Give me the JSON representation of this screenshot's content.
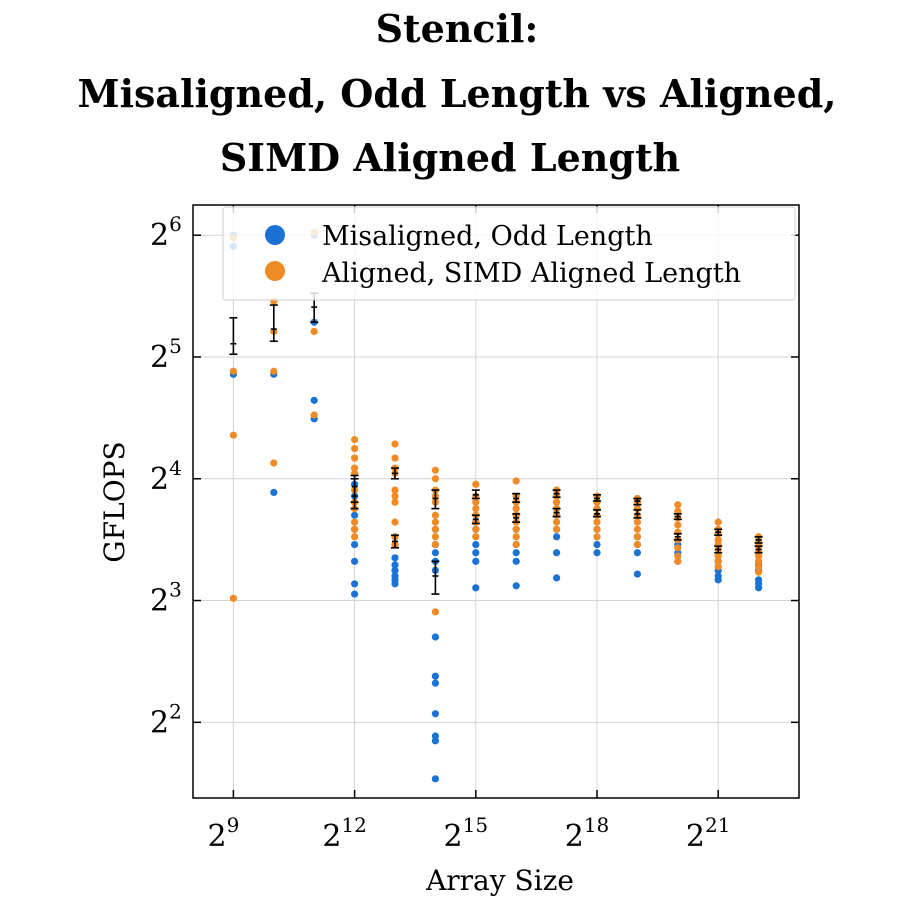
{
  "chart_data": {
    "type": "scatter",
    "title": [
      "Stencil:",
      "Misaligned, Odd Length vs Aligned,",
      "SIMD Aligned Length"
    ],
    "xlabel": "Array Size",
    "ylabel": "GFLOPS",
    "x_scale": "log2",
    "y_scale": "log2",
    "xlim": [
      256,
      8388608
    ],
    "ylim": [
      2.6,
      76
    ],
    "x_ticks": [
      {
        "base": "2",
        "exp": "9",
        "value": 512
      },
      {
        "base": "2",
        "exp": "12",
        "value": 4096
      },
      {
        "base": "2",
        "exp": "15",
        "value": 32768
      },
      {
        "base": "2",
        "exp": "18",
        "value": 262144
      },
      {
        "base": "2",
        "exp": "21",
        "value": 2097152
      }
    ],
    "y_ticks": [
      {
        "base": "2",
        "exp": "2",
        "value": 4
      },
      {
        "base": "2",
        "exp": "3",
        "value": 8
      },
      {
        "base": "2",
        "exp": "4",
        "value": 16
      },
      {
        "base": "2",
        "exp": "5",
        "value": 32
      },
      {
        "base": "2",
        "exp": "6",
        "value": 64
      }
    ],
    "grid": true,
    "legend_position": "top-right",
    "series": [
      {
        "name": "Misaligned, Odd Length",
        "color": "#1a73d4",
        "points": [
          [
            512,
            64
          ],
          [
            512,
            60
          ],
          [
            512,
            29
          ],
          [
            1024,
            29
          ],
          [
            1024,
            14.8
          ],
          [
            2048,
            64
          ],
          [
            2048,
            39
          ],
          [
            2048,
            25
          ],
          [
            2048,
            22.5
          ],
          [
            4096,
            15.5
          ],
          [
            4096,
            14.5
          ],
          [
            4096,
            13
          ],
          [
            4096,
            12
          ],
          [
            4096,
            11
          ],
          [
            4096,
            10
          ],
          [
            4096,
            8.8
          ],
          [
            4096,
            8.3
          ],
          [
            8192,
            11.5
          ],
          [
            8192,
            11
          ],
          [
            8192,
            10.2
          ],
          [
            8192,
            9.8
          ],
          [
            8192,
            9.5
          ],
          [
            8192,
            9.2
          ],
          [
            8192,
            9
          ],
          [
            8192,
            8.8
          ],
          [
            16384,
            12
          ],
          [
            16384,
            11
          ],
          [
            16384,
            10.5
          ],
          [
            16384,
            10
          ],
          [
            16384,
            9.5
          ],
          [
            16384,
            6.5
          ],
          [
            16384,
            5.2
          ],
          [
            16384,
            5
          ],
          [
            16384,
            4.2
          ],
          [
            16384,
            3.7
          ],
          [
            16384,
            3.6
          ],
          [
            16384,
            2.9
          ],
          [
            32768,
            12.5
          ],
          [
            32768,
            12
          ],
          [
            32768,
            11
          ],
          [
            32768,
            10.5
          ],
          [
            32768,
            10
          ],
          [
            32768,
            8.6
          ],
          [
            65536,
            12
          ],
          [
            65536,
            11
          ],
          [
            65536,
            10.5
          ],
          [
            65536,
            10
          ],
          [
            65536,
            8.7
          ],
          [
            131072,
            12
          ],
          [
            131072,
            11.5
          ],
          [
            131072,
            10.5
          ],
          [
            131072,
            9.1
          ],
          [
            262144,
            12
          ],
          [
            262144,
            11
          ],
          [
            262144,
            10.5
          ],
          [
            524288,
            11.5
          ],
          [
            524288,
            11
          ],
          [
            524288,
            10.5
          ],
          [
            524288,
            9.3
          ],
          [
            1048576,
            11
          ],
          [
            1048576,
            10.5
          ],
          [
            1048576,
            10
          ],
          [
            2097152,
            10
          ],
          [
            2097152,
            9.5
          ],
          [
            2097152,
            9.2
          ],
          [
            2097152,
            9
          ],
          [
            4194304,
            9.8
          ],
          [
            4194304,
            9.5
          ],
          [
            4194304,
            9
          ],
          [
            4194304,
            8.8
          ],
          [
            4194304,
            8.6
          ]
        ]
      },
      {
        "name": "Aligned, SIMD Aligned Length",
        "color": "#f08a24",
        "points": [
          [
            512,
            63
          ],
          [
            512,
            29.5
          ],
          [
            512,
            20.5
          ],
          [
            512,
            8.1
          ],
          [
            1024,
            44
          ],
          [
            1024,
            37
          ],
          [
            1024,
            29.5
          ],
          [
            1024,
            17.5
          ],
          [
            2048,
            65
          ],
          [
            2048,
            37
          ],
          [
            2048,
            23
          ],
          [
            4096,
            20
          ],
          [
            4096,
            19
          ],
          [
            4096,
            18
          ],
          [
            4096,
            17
          ],
          [
            4096,
            16.5
          ],
          [
            4096,
            15
          ],
          [
            4096,
            14
          ],
          [
            4096,
            13.5
          ],
          [
            4096,
            12.5
          ],
          [
            4096,
            12
          ],
          [
            4096,
            11.5
          ],
          [
            8192,
            19.5
          ],
          [
            8192,
            18
          ],
          [
            8192,
            17
          ],
          [
            8192,
            16.5
          ],
          [
            8192,
            15
          ],
          [
            8192,
            14.5
          ],
          [
            8192,
            14
          ],
          [
            8192,
            12.5
          ],
          [
            8192,
            11.5
          ],
          [
            8192,
            11
          ],
          [
            16384,
            16.8
          ],
          [
            16384,
            16
          ],
          [
            16384,
            15
          ],
          [
            16384,
            14.5
          ],
          [
            16384,
            14
          ],
          [
            16384,
            13
          ],
          [
            16384,
            12.5
          ],
          [
            16384,
            12
          ],
          [
            16384,
            11.5
          ],
          [
            16384,
            11
          ],
          [
            16384,
            7.5
          ],
          [
            32768,
            15.5
          ],
          [
            32768,
            14.5
          ],
          [
            32768,
            14
          ],
          [
            32768,
            13.5
          ],
          [
            32768,
            13
          ],
          [
            32768,
            12.5
          ],
          [
            32768,
            12
          ],
          [
            32768,
            11.5
          ],
          [
            65536,
            15.8
          ],
          [
            65536,
            14.5
          ],
          [
            65536,
            14
          ],
          [
            65536,
            13.5
          ],
          [
            65536,
            13
          ],
          [
            65536,
            12.5
          ],
          [
            65536,
            12
          ],
          [
            65536,
            11.5
          ],
          [
            65536,
            11
          ],
          [
            131072,
            15
          ],
          [
            131072,
            14.5
          ],
          [
            131072,
            14
          ],
          [
            131072,
            13.5
          ],
          [
            131072,
            13
          ],
          [
            131072,
            12.5
          ],
          [
            131072,
            12
          ],
          [
            262144,
            14.5
          ],
          [
            262144,
            14
          ],
          [
            262144,
            13.5
          ],
          [
            262144,
            13
          ],
          [
            262144,
            12.5
          ],
          [
            262144,
            12
          ],
          [
            262144,
            11.5
          ],
          [
            524288,
            14.3
          ],
          [
            524288,
            14
          ],
          [
            524288,
            13.5
          ],
          [
            524288,
            13
          ],
          [
            524288,
            12.5
          ],
          [
            524288,
            12
          ],
          [
            524288,
            11.5
          ],
          [
            524288,
            11
          ],
          [
            1048576,
            13.8
          ],
          [
            1048576,
            13.3
          ],
          [
            1048576,
            12.8
          ],
          [
            1048576,
            12.3
          ],
          [
            1048576,
            11.8
          ],
          [
            1048576,
            11.3
          ],
          [
            1048576,
            10.8
          ],
          [
            1048576,
            10.3
          ],
          [
            1048576,
            10
          ],
          [
            2097152,
            12.5
          ],
          [
            2097152,
            12
          ],
          [
            2097152,
            11.7
          ],
          [
            2097152,
            11.3
          ],
          [
            2097152,
            11
          ],
          [
            2097152,
            10.7
          ],
          [
            2097152,
            10.3
          ],
          [
            2097152,
            10
          ],
          [
            2097152,
            9.7
          ],
          [
            4194304,
            11.5
          ],
          [
            4194304,
            11.2
          ],
          [
            4194304,
            10.9
          ],
          [
            4194304,
            10.6
          ],
          [
            4194304,
            10.3
          ],
          [
            4194304,
            10
          ],
          [
            4194304,
            9.7
          ],
          [
            4194304,
            9.4
          ]
        ]
      }
    ],
    "error_bars": [
      {
        "x": 512,
        "low": 32.5,
        "high": 40,
        "mid": 34.5
      },
      {
        "x": 1024,
        "low": 35,
        "high": 43,
        "mid": 37.5
      },
      {
        "x": 2048,
        "low": 39,
        "high": 46,
        "mid": 42.5
      },
      {
        "x": 4096,
        "low": 14,
        "high": 16.3,
        "mid": 15.3
      },
      {
        "x": 4096,
        "low": 13.5,
        "high": 16,
        "mid": 14.5
      },
      {
        "x": 8192,
        "low": 16,
        "high": 17,
        "mid": 16.5
      },
      {
        "x": 8192,
        "low": 10.8,
        "high": 11.6,
        "mid": 11.2
      },
      {
        "x": 16384,
        "low": 13.5,
        "high": 15,
        "mid": 14.3
      },
      {
        "x": 16384,
        "low": 8.3,
        "high": 10,
        "mid": 9.2
      },
      {
        "x": 32768,
        "low": 14.3,
        "high": 15,
        "mid": 14.6
      },
      {
        "x": 32768,
        "low": 12.4,
        "high": 13,
        "mid": 12.7
      },
      {
        "x": 65536,
        "low": 14,
        "high": 14.7,
        "mid": 14.3
      },
      {
        "x": 65536,
        "low": 12.5,
        "high": 13.1,
        "mid": 12.8
      },
      {
        "x": 131072,
        "low": 14.4,
        "high": 15,
        "mid": 14.7
      },
      {
        "x": 131072,
        "low": 12.9,
        "high": 13.5,
        "mid": 13.2
      },
      {
        "x": 262144,
        "low": 14.1,
        "high": 14.6,
        "mid": 14.3
      },
      {
        "x": 262144,
        "low": 12.9,
        "high": 13.4,
        "mid": 13.1
      },
      {
        "x": 524288,
        "low": 13.8,
        "high": 14.3,
        "mid": 14.1
      },
      {
        "x": 524288,
        "low": 12.8,
        "high": 13.4,
        "mid": 13.1
      },
      {
        "x": 1048576,
        "low": 12.7,
        "high": 13.1,
        "mid": 12.9
      },
      {
        "x": 1048576,
        "low": 11.3,
        "high": 11.7,
        "mid": 11.5
      },
      {
        "x": 2097152,
        "low": 11.6,
        "high": 12,
        "mid": 11.8
      },
      {
        "x": 2097152,
        "low": 10.5,
        "high": 10.9,
        "mid": 10.7
      },
      {
        "x": 4194304,
        "low": 11.1,
        "high": 11.5,
        "mid": 11.3
      },
      {
        "x": 4194304,
        "low": 10.5,
        "high": 10.9,
        "mid": 10.7
      }
    ]
  }
}
